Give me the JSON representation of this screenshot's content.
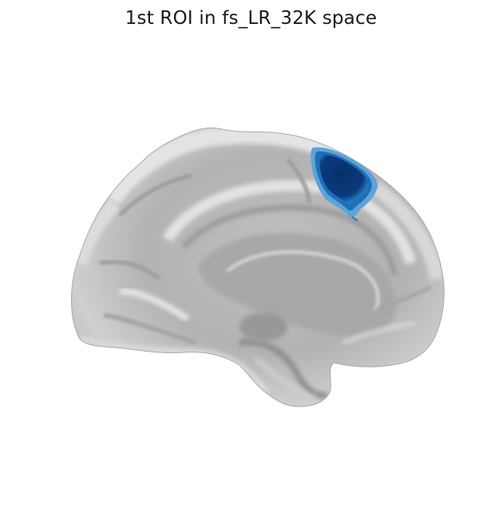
{
  "figure": {
    "title": "1st ROI in fs_LR_32K space"
  },
  "colors": {
    "background": "#ffffff",
    "surface_light": "#ececec",
    "surface_mid": "#bdbdbd",
    "surface_dark": "#8e8e8e",
    "roi_core": "#08306b",
    "roi_mid": "#1f6fb5",
    "roi_edge": "#5ba3d9"
  }
}
